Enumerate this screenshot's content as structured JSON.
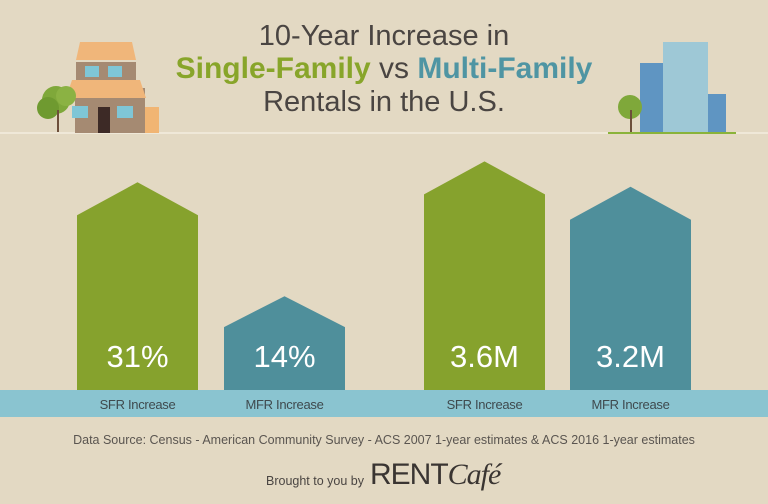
{
  "title": {
    "line1": "10-Year Increase in",
    "sfr": "Single-Family",
    "vs": "vs",
    "mfr": "Multi-Family",
    "line3": "Rentals in the U.S."
  },
  "colors": {
    "sfr": "#86a22d",
    "mfr": "#4f8f9b",
    "strip": "#8ac4d0",
    "background": "#e3d9c3"
  },
  "chart_data": {
    "type": "bar",
    "title": "10-Year Increase in Single-Family vs Multi-Family Rentals in the U.S.",
    "groups": [
      {
        "unit": "percent",
        "categories": [
          "SFR Increase",
          "MFR Increase"
        ],
        "values": [
          31,
          14
        ],
        "labels": [
          "31%",
          "14%"
        ]
      },
      {
        "unit": "count",
        "categories": [
          "SFR Increase",
          "MFR Increase"
        ],
        "values": [
          3.6,
          3.2
        ],
        "labels": [
          "3.6M",
          "3.2M"
        ]
      }
    ]
  },
  "footer": {
    "source": "Data Source: Census - American Community Survey - ACS 2007 1-year estimates & ACS 2016 1-year estimates",
    "brought": "Brought to you by",
    "logo_main": "RENT",
    "logo_script": "Café"
  }
}
